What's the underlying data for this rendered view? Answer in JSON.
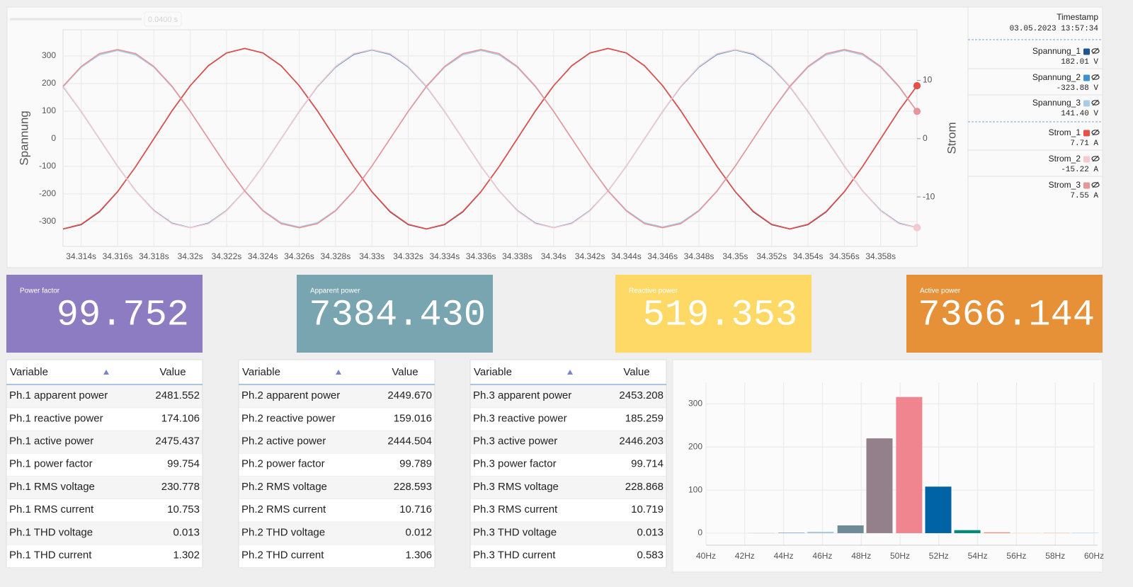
{
  "range_label": "0.0400 s",
  "chart_data": [
    {
      "type": "line",
      "ylabel": "Spannung",
      "y2label": "Strom",
      "timestamp_label": "Timestamp",
      "timestamp": "03.05.2023 13:57:34",
      "x": [
        34.313,
        34.314,
        34.315,
        34.316,
        34.317,
        34.318,
        34.319,
        34.32,
        34.321,
        34.322,
        34.323,
        34.324,
        34.325,
        34.326,
        34.327,
        34.328,
        34.329,
        34.33,
        34.331,
        34.332,
        34.333,
        34.334,
        34.335,
        34.336,
        34.337,
        34.338,
        34.339,
        34.34,
        34.341,
        34.342,
        34.343,
        34.344,
        34.345,
        34.346,
        34.347,
        34.348,
        34.349,
        34.35,
        34.351,
        34.352,
        34.353,
        34.354,
        34.355,
        34.356,
        34.357,
        34.358,
        34.359,
        34.36
      ],
      "xlim": [
        34.313,
        34.36
      ],
      "xticks": [
        {
          "value": 34.314,
          "label": "34.314s"
        },
        {
          "value": 34.316,
          "label": "34.316s"
        },
        {
          "value": 34.318,
          "label": "34.318s"
        },
        {
          "value": 34.32,
          "label": "34.32s"
        },
        {
          "value": 34.322,
          "label": "34.322s"
        },
        {
          "value": 34.324,
          "label": "34.324s"
        },
        {
          "value": 34.326,
          "label": "34.326s"
        },
        {
          "value": 34.328,
          "label": "34.328s"
        },
        {
          "value": 34.33,
          "label": "34.33s"
        },
        {
          "value": 34.332,
          "label": "34.332s"
        },
        {
          "value": 34.334,
          "label": "34.334s"
        },
        {
          "value": 34.336,
          "label": "34.336s"
        },
        {
          "value": 34.338,
          "label": "34.338s"
        },
        {
          "value": 34.34,
          "label": "34.34s"
        },
        {
          "value": 34.342,
          "label": "34.342s"
        },
        {
          "value": 34.344,
          "label": "34.344s"
        },
        {
          "value": 34.346,
          "label": "34.346s"
        },
        {
          "value": 34.348,
          "label": "34.348s"
        },
        {
          "value": 34.35,
          "label": "34.35s"
        },
        {
          "value": 34.352,
          "label": "34.352s"
        },
        {
          "value": 34.354,
          "label": "34.354s"
        },
        {
          "value": 34.356,
          "label": "34.356s"
        },
        {
          "value": 34.358,
          "label": "34.358s"
        }
      ],
      "ylim": [
        -390,
        395
      ],
      "yticks": [
        300,
        200,
        100,
        0,
        -100,
        -200,
        -300
      ],
      "y2lim": [
        -18.5,
        18.7
      ],
      "y2ticks": [
        10,
        0,
        -10
      ],
      "grid": true,
      "series": [
        {
          "name": "Spannung_1",
          "color": "#1f5592",
          "readout": "182.01 V",
          "values": [
            -327,
            -311,
            -265,
            -192,
            -101,
            0,
            101,
            192,
            265,
            311,
            327,
            311,
            265,
            192,
            101,
            0,
            -101,
            -192,
            -265,
            -311,
            -327,
            -311,
            -265,
            -192,
            -101,
            0,
            101,
            192,
            265,
            311,
            327,
            311,
            265,
            192,
            101,
            0,
            -101,
            -192,
            -265,
            -311,
            -327,
            -311,
            -265,
            -192,
            -101,
            0,
            101,
            192
          ]
        },
        {
          "name": "Spannung_2",
          "color": "#3d8fd1",
          "readout": "-323.88 V",
          "values": [
            189,
            99,
            0,
            -99,
            -189,
            -260,
            -306,
            -322,
            -306,
            -260,
            -189,
            -99,
            0,
            99,
            189,
            260,
            306,
            322,
            306,
            260,
            189,
            99,
            0,
            -99,
            -189,
            -260,
            -306,
            -322,
            -306,
            -260,
            -189,
            -99,
            0,
            99,
            189,
            260,
            306,
            322,
            306,
            260,
            189,
            99,
            0,
            -99,
            -189,
            -260,
            -306,
            -322
          ]
        },
        {
          "name": "Spannung_3",
          "color": "#a9cbea",
          "readout": "141.40 V",
          "values": [
            188,
            259,
            304,
            320,
            304,
            259,
            188,
            99,
            0,
            -99,
            -188,
            -259,
            -304,
            -320,
            -304,
            -259,
            -188,
            -99,
            0,
            99,
            188,
            259,
            304,
            320,
            304,
            259,
            188,
            99,
            0,
            -99,
            -188,
            -259,
            -304,
            -320,
            -304,
            -259,
            -188,
            -99,
            0,
            99,
            188,
            259,
            304,
            320,
            304,
            259,
            188,
            99
          ]
        },
        {
          "name": "Strom_1",
          "color": "#ea4f45",
          "axis": "y2",
          "readout": "7.71 A",
          "values": [
            -15.5,
            -14.7,
            -12.5,
            -9.1,
            -4.8,
            0,
            4.8,
            9.1,
            12.5,
            14.7,
            15.5,
            14.7,
            12.5,
            9.1,
            4.8,
            0,
            -4.8,
            -9.1,
            -12.5,
            -14.7,
            -15.5,
            -14.7,
            -12.5,
            -9.1,
            -4.8,
            0,
            4.8,
            9.1,
            12.5,
            14.7,
            15.5,
            14.7,
            12.5,
            9.1,
            4.8,
            0,
            -4.8,
            -9.1,
            -12.5,
            -14.7,
            -15.5,
            -14.7,
            -12.5,
            -9.1,
            -4.8,
            0,
            4.8,
            9.1
          ]
        },
        {
          "name": "Strom_2",
          "color": "#f6c9cf",
          "axis": "y2",
          "readout": "-15.22 A",
          "values": [
            9,
            4.7,
            0,
            -4.7,
            -9,
            -12.4,
            -14.6,
            -15.3,
            -14.6,
            -12.4,
            -9,
            -4.7,
            0,
            4.7,
            9,
            12.4,
            14.6,
            15.3,
            14.6,
            12.4,
            9,
            4.7,
            0,
            -4.7,
            -9,
            -12.4,
            -14.6,
            -15.3,
            -14.6,
            -12.4,
            -9,
            -4.7,
            0,
            4.7,
            9,
            12.4,
            14.6,
            15.3,
            14.6,
            12.4,
            9,
            4.7,
            0,
            -4.7,
            -9,
            -12.4,
            -14.6,
            -15.3
          ]
        },
        {
          "name": "Strom_3",
          "color": "#e8959a",
          "axis": "y2",
          "readout": "7.55 A",
          "values": [
            9,
            12.4,
            14.6,
            15.3,
            14.6,
            12.4,
            9,
            4.7,
            0,
            -4.7,
            -9,
            -12.4,
            -14.6,
            -15.3,
            -14.6,
            -12.4,
            -9,
            -4.7,
            0,
            4.7,
            9,
            12.4,
            14.6,
            15.3,
            14.6,
            12.4,
            9,
            4.7,
            0,
            -4.7,
            -9,
            -12.4,
            -14.6,
            -15.3,
            -14.6,
            -12.4,
            -9,
            -4.7,
            0,
            4.7,
            9,
            12.4,
            14.6,
            15.3,
            14.6,
            12.4,
            9,
            4.7
          ]
        }
      ]
    },
    {
      "type": "bar",
      "x": [
        42.85,
        44.4,
        45.9,
        47.45,
        48.94,
        50.47,
        51.97,
        53.47,
        55,
        56.5,
        58.07,
        59.56
      ],
      "values": [
        0.5,
        1,
        3,
        18,
        220,
        316,
        108,
        7,
        2,
        1,
        1,
        1
      ],
      "colors": [
        "#d0d0d0",
        "#5a8fbf",
        "#9fc4e0",
        "#6e8b97",
        "#94808a",
        "#f0858f",
        "#0063a6",
        "#00897b",
        "#ef8a74",
        "#f6e2a6",
        "#f3c9a8",
        "#b9d3ea"
      ],
      "xlim": [
        40,
        60
      ],
      "xticks": [
        {
          "value": 40,
          "label": "40Hz"
        },
        {
          "value": 42,
          "label": "42Hz"
        },
        {
          "value": 44,
          "label": "44Hz"
        },
        {
          "value": 46,
          "label": "46Hz"
        },
        {
          "value": 48,
          "label": "48Hz"
        },
        {
          "value": 50,
          "label": "50Hz"
        },
        {
          "value": 52,
          "label": "52Hz"
        },
        {
          "value": 54,
          "label": "54Hz"
        },
        {
          "value": 56,
          "label": "56Hz"
        },
        {
          "value": 58,
          "label": "58Hz"
        },
        {
          "value": 60,
          "label": "60Hz"
        }
      ],
      "ylim": [
        -28,
        350
      ],
      "yticks": [
        0,
        100,
        200,
        300
      ],
      "grid": true
    }
  ],
  "kpis": [
    {
      "label": "Power factor",
      "value": "99.752",
      "color": "#8e7cc3"
    },
    {
      "label": "Apparent power",
      "value": "7384.430",
      "color": "#78a5b0"
    },
    {
      "label": "Reactive power",
      "value": "519.353",
      "color": "#ffd966"
    },
    {
      "label": "Active power",
      "value": "7366.144",
      "color": "#e69138"
    }
  ],
  "tables": [
    {
      "header": [
        "Variable",
        "Value"
      ],
      "rows": [
        [
          "Ph.1 apparent power",
          "2481.552"
        ],
        [
          "Ph.1 reactive power",
          "174.106"
        ],
        [
          "Ph.1 active power",
          "2475.437"
        ],
        [
          "Ph.1 power factor",
          "99.754"
        ],
        [
          "Ph.1 RMS voltage",
          "230.778"
        ],
        [
          "Ph.1 RMS current",
          "10.753"
        ],
        [
          "Ph.1 THD voltage",
          "0.013"
        ],
        [
          "Ph.1 THD current",
          "1.302"
        ]
      ]
    },
    {
      "header": [
        "Variable",
        "Value"
      ],
      "rows": [
        [
          "Ph.2 apparent power",
          "2449.670"
        ],
        [
          "Ph.2 reactive power",
          "159.016"
        ],
        [
          "Ph.2 active power",
          "2444.504"
        ],
        [
          "Ph.2 power factor",
          "99.789"
        ],
        [
          "Ph.2 RMS voltage",
          "228.593"
        ],
        [
          "Ph.2 RMS current",
          "10.716"
        ],
        [
          "Ph.2 THD voltage",
          "0.012"
        ],
        [
          "Ph.2 THD current",
          "1.306"
        ]
      ]
    },
    {
      "header": [
        "Variable",
        "Value"
      ],
      "rows": [
        [
          "Ph.3 apparent power",
          "2453.208"
        ],
        [
          "Ph.3 reactive power",
          "185.259"
        ],
        [
          "Ph.3 active power",
          "2446.203"
        ],
        [
          "Ph.3 power factor",
          "99.714"
        ],
        [
          "Ph.3 RMS voltage",
          "228.868"
        ],
        [
          "Ph.3 RMS current",
          "10.719"
        ],
        [
          "Ph.3 THD voltage",
          "0.013"
        ],
        [
          "Ph.3 THD current",
          "0.583"
        ]
      ]
    }
  ]
}
